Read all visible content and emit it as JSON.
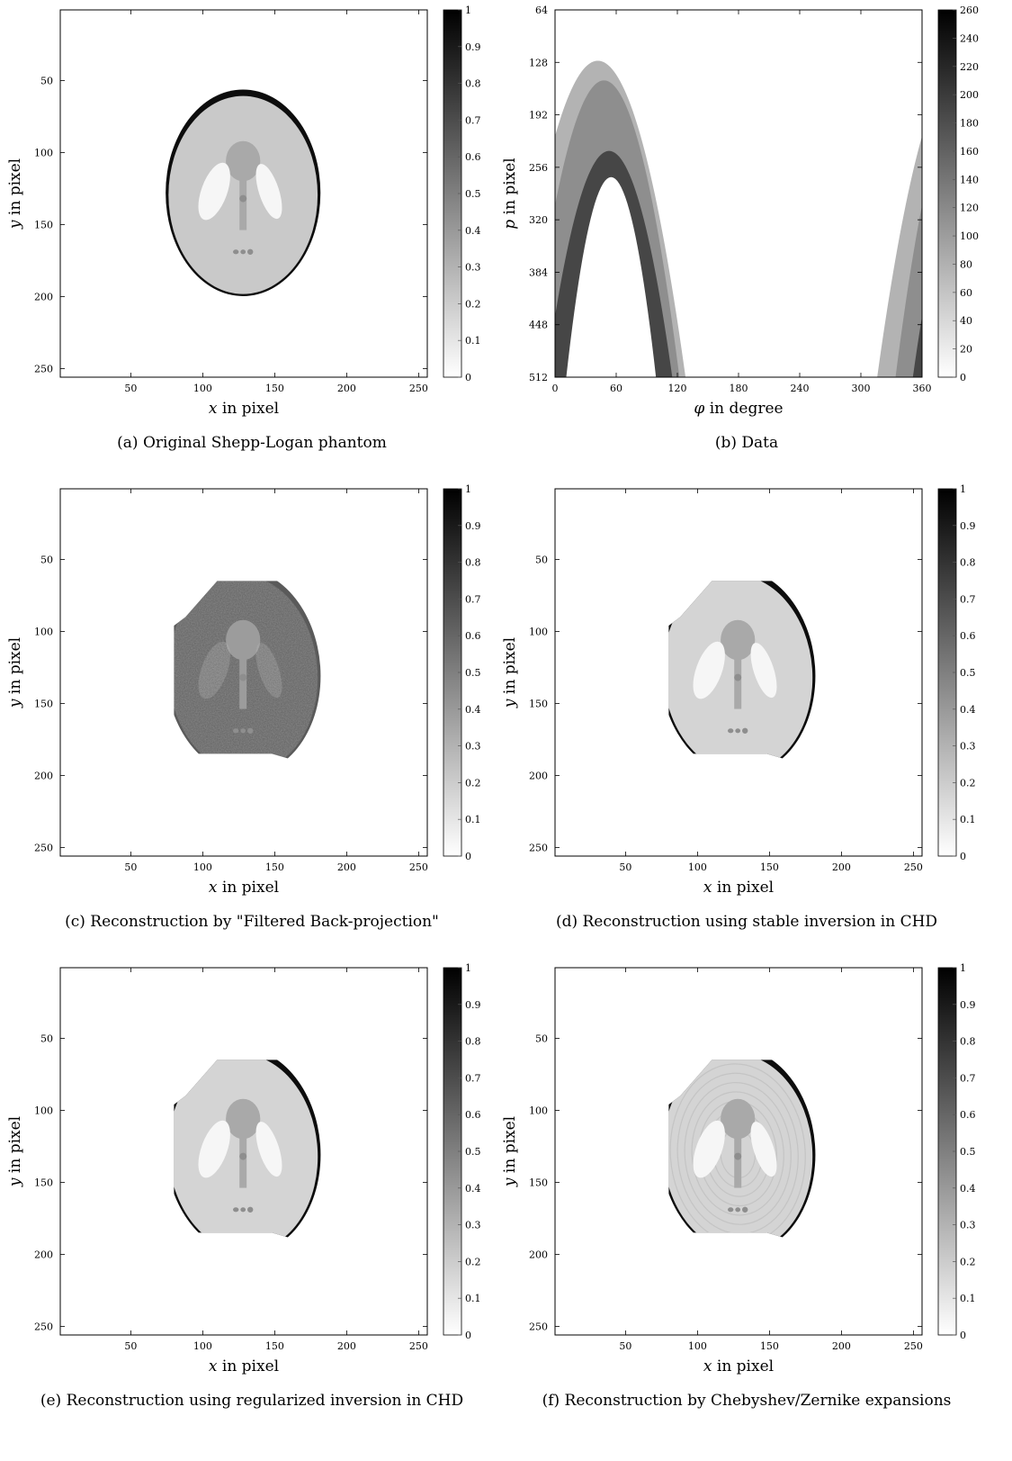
{
  "panels": [
    {
      "id": "a",
      "caption": "(a)  Original Shepp-Logan phantom",
      "chart_data": {
        "type": "heatmap",
        "xlabel_var": "x",
        "xlabel_rest": " in pixel",
        "ylabel_var": "y",
        "ylabel_rest": " in pixel",
        "xlim": [
          1,
          256
        ],
        "ylim": [
          1,
          256
        ],
        "y_inverted": true,
        "x_ticks": [
          "50",
          "100",
          "150",
          "200",
          "250"
        ],
        "y_ticks": [
          "50",
          "100",
          "150",
          "200",
          "250"
        ],
        "colorbar_range": [
          0,
          1
        ],
        "colorbar_ticks": [
          "0",
          "0.1",
          "0.2",
          "0.3",
          "0.4",
          "0.5",
          "0.6",
          "0.7",
          "0.8",
          "0.9",
          "1"
        ],
        "colormap": "gray (white=0, black=max)"
      }
    },
    {
      "id": "b",
      "caption": "(b)  Data",
      "chart_data": {
        "type": "heatmap",
        "xlabel_var": "φ",
        "xlabel_rest": " in degree",
        "ylabel_var": "p",
        "ylabel_rest": " in pixel",
        "xlim": [
          0,
          360
        ],
        "ylim": [
          64,
          512
        ],
        "y_inverted": true,
        "x_ticks": [
          "0",
          "60",
          "120",
          "180",
          "240",
          "300",
          "360"
        ],
        "y_ticks": [
          "64",
          "128",
          "192",
          "256",
          "320",
          "384",
          "448",
          "512"
        ],
        "colorbar_range": [
          0,
          260
        ],
        "colorbar_ticks": [
          "0",
          "20",
          "40",
          "60",
          "80",
          "100",
          "120",
          "140",
          "160",
          "180",
          "200",
          "220",
          "240",
          "260"
        ],
        "colormap": "gray (white=0, black=max)"
      }
    },
    {
      "id": "c",
      "caption": "(c)  Reconstruction by \"Filtered Back-projection\"",
      "chart_data": {
        "type": "heatmap",
        "xlabel_var": "x",
        "xlabel_rest": " in pixel",
        "ylabel_var": "y",
        "ylabel_rest": " in pixel",
        "xlim": [
          1,
          256
        ],
        "ylim": [
          1,
          256
        ],
        "y_inverted": true,
        "x_ticks": [
          "50",
          "100",
          "150",
          "200",
          "250"
        ],
        "y_ticks": [
          "50",
          "100",
          "150",
          "200",
          "250"
        ],
        "colorbar_range": [
          0,
          1
        ],
        "colorbar_ticks": [
          "0",
          "0.1",
          "0.2",
          "0.3",
          "0.4",
          "0.5",
          "0.6",
          "0.7",
          "0.8",
          "0.9",
          "1"
        ],
        "colormap": "gray (white=0, black=max)"
      }
    },
    {
      "id": "d",
      "caption": "(d)  Reconstruction using stable inversion in CHD",
      "chart_data": {
        "type": "heatmap",
        "xlabel_var": "x",
        "xlabel_rest": " in pixel",
        "ylabel_var": "y",
        "ylabel_rest": " in pixel",
        "xlim": [
          1,
          256
        ],
        "ylim": [
          1,
          256
        ],
        "y_inverted": true,
        "x_ticks": [
          "50",
          "100",
          "150",
          "200",
          "250"
        ],
        "y_ticks": [
          "50",
          "100",
          "150",
          "200",
          "250"
        ],
        "colorbar_range": [
          0,
          1
        ],
        "colorbar_ticks": [
          "0",
          "0.1",
          "0.2",
          "0.3",
          "0.4",
          "0.5",
          "0.6",
          "0.7",
          "0.8",
          "0.9",
          "1"
        ],
        "colormap": "gray (white=0, black=max)"
      }
    },
    {
      "id": "e",
      "caption": "(e)  Reconstruction using regularized inversion in CHD",
      "chart_data": {
        "type": "heatmap",
        "xlabel_var": "x",
        "xlabel_rest": " in pixel",
        "ylabel_var": "y",
        "ylabel_rest": " in pixel",
        "xlim": [
          1,
          256
        ],
        "ylim": [
          1,
          256
        ],
        "y_inverted": true,
        "x_ticks": [
          "50",
          "100",
          "150",
          "200",
          "250"
        ],
        "y_ticks": [
          "50",
          "100",
          "150",
          "200",
          "250"
        ],
        "colorbar_range": [
          0,
          1
        ],
        "colorbar_ticks": [
          "0",
          "0.1",
          "0.2",
          "0.3",
          "0.4",
          "0.5",
          "0.6",
          "0.7",
          "0.8",
          "0.9",
          "1"
        ],
        "colormap": "gray (white=0, black=max)"
      }
    },
    {
      "id": "f",
      "caption": "(f)  Reconstruction by Chebyshev/Zernike expansions",
      "chart_data": {
        "type": "heatmap",
        "xlabel_var": "x",
        "xlabel_rest": " in pixel",
        "ylabel_var": "y",
        "ylabel_rest": " in pixel",
        "xlim": [
          1,
          256
        ],
        "ylim": [
          1,
          256
        ],
        "y_inverted": true,
        "x_ticks": [
          "50",
          "100",
          "150",
          "200",
          "250"
        ],
        "y_ticks": [
          "50",
          "100",
          "150",
          "200",
          "250"
        ],
        "colorbar_range": [
          0,
          1
        ],
        "colorbar_ticks": [
          "0",
          "0.1",
          "0.2",
          "0.3",
          "0.4",
          "0.5",
          "0.6",
          "0.7",
          "0.8",
          "0.9",
          "1"
        ],
        "colormap": "gray (white=0, black=max)"
      }
    }
  ]
}
